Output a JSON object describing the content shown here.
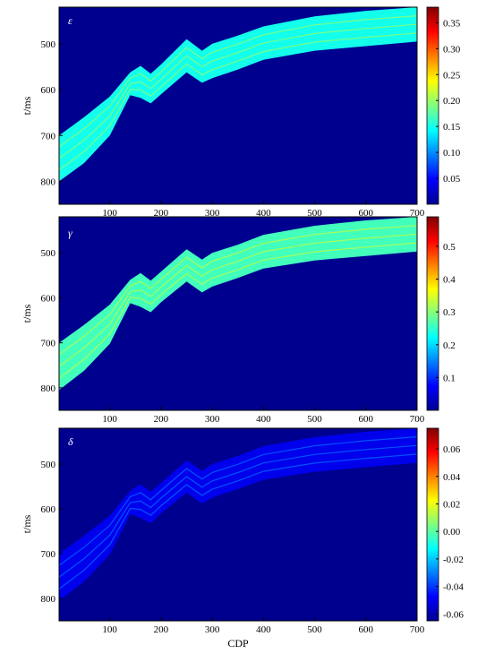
{
  "chart_data": [
    {
      "type": "heatmap",
      "symbol": "ε",
      "xlabel": "",
      "ylabel": "t/ms",
      "xlim": [
        1,
        700
      ],
      "ylim": [
        420,
        850
      ],
      "x_ticks": [
        "100",
        "200",
        "300",
        "400",
        "500",
        "600",
        "700"
      ],
      "y_ticks": [
        "500",
        "600",
        "700",
        "800"
      ],
      "colorbar_ticks": [
        "0.05",
        "0.10",
        "0.15",
        "0.20",
        "0.25",
        "0.30",
        "0.35"
      ],
      "colorbar_range": [
        0.0,
        0.38
      ],
      "background_value": 0.0,
      "band_value": 0.15,
      "band_horizon_ms": [
        {
          "cdp": 1,
          "top": 700,
          "bottom": 800
        },
        {
          "cdp": 50,
          "top": 660,
          "bottom": 760
        },
        {
          "cdp": 100,
          "top": 615,
          "bottom": 700
        },
        {
          "cdp": 140,
          "top": 562,
          "bottom": 612
        },
        {
          "cdp": 160,
          "top": 548,
          "bottom": 618
        },
        {
          "cdp": 180,
          "top": 565,
          "bottom": 630
        },
        {
          "cdp": 200,
          "top": 545,
          "bottom": 610
        },
        {
          "cdp": 250,
          "top": 490,
          "bottom": 562
        },
        {
          "cdp": 280,
          "top": 515,
          "bottom": 585
        },
        {
          "cdp": 300,
          "top": 500,
          "bottom": 575
        },
        {
          "cdp": 350,
          "top": 482,
          "bottom": 556
        },
        {
          "cdp": 400,
          "top": 462,
          "bottom": 535
        },
        {
          "cdp": 500,
          "top": 440,
          "bottom": 515
        },
        {
          "cdp": 600,
          "top": 428,
          "bottom": 505
        },
        {
          "cdp": 700,
          "top": 420,
          "bottom": 495
        }
      ]
    },
    {
      "type": "heatmap",
      "symbol": "γ",
      "xlabel": "",
      "ylabel": "t/ms",
      "xlim": [
        1,
        700
      ],
      "ylim": [
        420,
        850
      ],
      "x_ticks": [
        "100",
        "200",
        "300",
        "400",
        "500",
        "600",
        "700"
      ],
      "y_ticks": [
        "500",
        "600",
        "700",
        "800"
      ],
      "colorbar_ticks": [
        "0.1",
        "0.2",
        "0.3",
        "0.4",
        "0.5"
      ],
      "colorbar_range": [
        0.0,
        0.59
      ],
      "background_value": 0.0,
      "band_value": 0.26,
      "band_horizon_ms": [
        {
          "cdp": 1,
          "top": 700,
          "bottom": 805
        },
        {
          "cdp": 50,
          "top": 660,
          "bottom": 762
        },
        {
          "cdp": 100,
          "top": 615,
          "bottom": 702
        },
        {
          "cdp": 140,
          "top": 560,
          "bottom": 612
        },
        {
          "cdp": 160,
          "top": 545,
          "bottom": 620
        },
        {
          "cdp": 180,
          "top": 562,
          "bottom": 632
        },
        {
          "cdp": 200,
          "top": 542,
          "bottom": 610
        },
        {
          "cdp": 250,
          "top": 492,
          "bottom": 564
        },
        {
          "cdp": 280,
          "top": 515,
          "bottom": 588
        },
        {
          "cdp": 300,
          "top": 500,
          "bottom": 575
        },
        {
          "cdp": 350,
          "top": 482,
          "bottom": 556
        },
        {
          "cdp": 400,
          "top": 460,
          "bottom": 535
        },
        {
          "cdp": 500,
          "top": 440,
          "bottom": 517
        },
        {
          "cdp": 600,
          "top": 428,
          "bottom": 507
        },
        {
          "cdp": 700,
          "top": 420,
          "bottom": 497
        }
      ]
    },
    {
      "type": "heatmap",
      "symbol": "δ",
      "xlabel": "CDP",
      "ylabel": "t/ms",
      "xlim": [
        1,
        700
      ],
      "ylim": [
        420,
        850
      ],
      "x_ticks": [
        "100",
        "200",
        "300",
        "400",
        "500",
        "600",
        "700"
      ],
      "y_ticks": [
        "500",
        "600",
        "700",
        "800"
      ],
      "colorbar_ticks": [
        "0.06",
        "0.04",
        "0.02",
        "0.00",
        "-0.02",
        "-0.04",
        "-0.06"
      ],
      "colorbar_range": [
        -0.065,
        0.075
      ],
      "background_value": -0.065,
      "band_value": -0.05,
      "band_horizon_ms": [
        {
          "cdp": 1,
          "top": 700,
          "bottom": 805
        },
        {
          "cdp": 50,
          "top": 660,
          "bottom": 762
        },
        {
          "cdp": 100,
          "top": 615,
          "bottom": 702
        },
        {
          "cdp": 140,
          "top": 560,
          "bottom": 612
        },
        {
          "cdp": 160,
          "top": 545,
          "bottom": 620
        },
        {
          "cdp": 180,
          "top": 562,
          "bottom": 632
        },
        {
          "cdp": 200,
          "top": 542,
          "bottom": 610
        },
        {
          "cdp": 250,
          "top": 492,
          "bottom": 564
        },
        {
          "cdp": 280,
          "top": 515,
          "bottom": 588
        },
        {
          "cdp": 300,
          "top": 500,
          "bottom": 575
        },
        {
          "cdp": 350,
          "top": 482,
          "bottom": 556
        },
        {
          "cdp": 400,
          "top": 460,
          "bottom": 535
        },
        {
          "cdp": 500,
          "top": 440,
          "bottom": 517
        },
        {
          "cdp": 600,
          "top": 428,
          "bottom": 507
        },
        {
          "cdp": 700,
          "top": 420,
          "bottom": 497
        }
      ]
    }
  ]
}
